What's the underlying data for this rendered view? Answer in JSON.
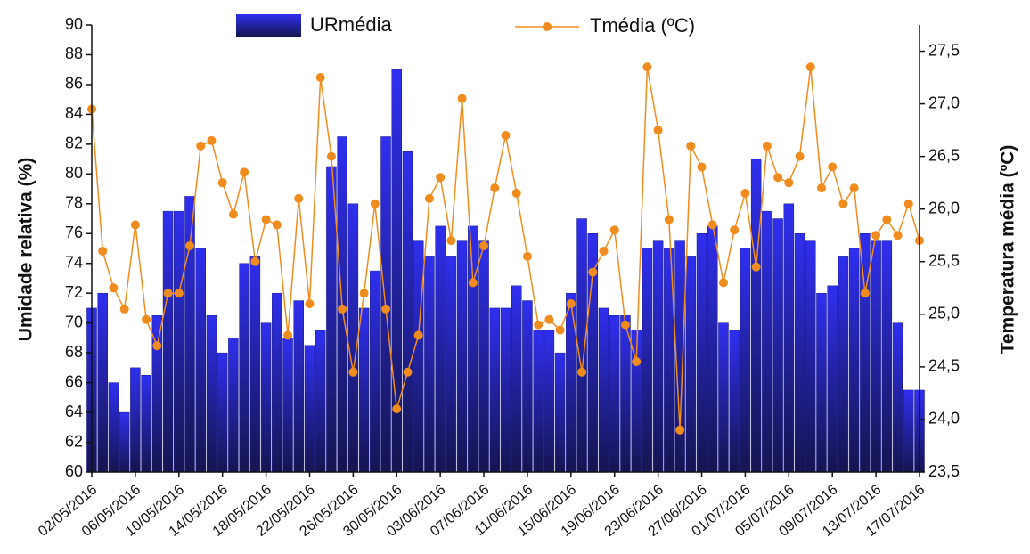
{
  "chart_data": {
    "type": "bar",
    "categories": [
      "02/05/2016",
      null,
      null,
      null,
      "06/05/2016",
      null,
      null,
      null,
      "10/05/2016",
      null,
      null,
      null,
      "14/05/2016",
      null,
      null,
      null,
      "18/05/2016",
      null,
      null,
      null,
      "22/05/2016",
      null,
      null,
      null,
      "26/05/2016",
      null,
      null,
      null,
      "30/05/2016",
      null,
      null,
      null,
      "03/06/2016",
      null,
      null,
      null,
      "07/06/2016",
      null,
      null,
      null,
      "11/06/2016",
      null,
      null,
      null,
      "15/06/2016",
      null,
      null,
      null,
      "19/06/2016",
      null,
      null,
      null,
      "23/06/2016",
      null,
      null,
      null,
      "27/06/2016",
      null,
      null,
      null,
      "01/07/2016",
      null,
      null,
      null,
      "05/07/2016",
      null,
      null,
      null,
      "09/07/2016",
      null,
      null,
      null,
      "13/07/2016",
      null,
      null,
      null,
      "17/07/2016"
    ],
    "series": [
      {
        "name": "URmédia",
        "type": "bar",
        "color": "#2f2ff0",
        "values": [
          71,
          72,
          66,
          64,
          67,
          66.5,
          70.5,
          77.5,
          77.5,
          78.5,
          75,
          70.5,
          68,
          69,
          74,
          74.5,
          70,
          72,
          69,
          71.5,
          68.5,
          69.5,
          80.5,
          82.5,
          78,
          71,
          73.5,
          82.5,
          87,
          81.5,
          75.5,
          74.5,
          76.5,
          74.5,
          75.5,
          76.5,
          75.5,
          71,
          71,
          72.5,
          71.5,
          69.5,
          69.5,
          68,
          72,
          77,
          76,
          71,
          70.5,
          70.5,
          69.5,
          75,
          75.5,
          75,
          75.5,
          74.5,
          76,
          76.5,
          70,
          69.5,
          75,
          81,
          77.5,
          77,
          78,
          76,
          75.5,
          72,
          72.5,
          74.5,
          75,
          76,
          75.5,
          75.5,
          70,
          65.5,
          65.5
        ]
      },
      {
        "name": "Tmédia (ºC)",
        "type": "line",
        "axis": "y2",
        "color": "#f08c1e",
        "values": [
          26.95,
          25.6,
          25.25,
          25.05,
          25.85,
          24.95,
          24.7,
          25.2,
          25.2,
          25.65,
          26.6,
          26.65,
          26.25,
          25.95,
          26.35,
          25.5,
          25.9,
          25.85,
          24.8,
          26.1,
          25.1,
          27.25,
          26.5,
          25.05,
          24.45,
          25.2,
          26.05,
          25.05,
          24.1,
          24.45,
          24.8,
          26.1,
          26.3,
          25.7,
          27.05,
          25.3,
          25.65,
          26.2,
          26.7,
          26.15,
          25.55,
          24.9,
          24.95,
          24.85,
          25.1,
          24.45,
          25.4,
          25.6,
          25.8,
          24.9,
          24.55,
          27.35,
          26.75,
          25.9,
          23.9,
          26.6,
          26.4,
          25.85,
          25.3,
          25.8,
          26.15,
          25.45,
          26.6,
          26.3,
          26.25,
          26.5,
          27.35,
          26.2,
          26.4,
          26.05,
          26.2,
          25.2,
          25.75,
          25.9,
          25.75,
          26.05,
          25.7
        ]
      }
    ],
    "y_label": "Umidade relativa (%)",
    "y2_label": "Temperatura média (ºC)",
    "ylim": [
      60,
      90
    ],
    "yticks": [
      60,
      62,
      64,
      66,
      68,
      70,
      72,
      74,
      76,
      78,
      80,
      82,
      84,
      86,
      88,
      90
    ],
    "y2lim": [
      23.5,
      27.75
    ],
    "y2ticks": [
      {
        "value": 23.5,
        "label": "23,5"
      },
      {
        "value": 24,
        "label": "24,0"
      },
      {
        "value": 24.5,
        "label": "24,5"
      },
      {
        "value": 25,
        "label": "25,0"
      },
      {
        "value": 25.5,
        "label": "25,5"
      },
      {
        "value": 26,
        "label": "26,0"
      },
      {
        "value": 26.5,
        "label": "26,5"
      },
      {
        "value": 27,
        "label": "27,0"
      },
      {
        "value": 27.5,
        "label": "27,5"
      }
    ]
  }
}
